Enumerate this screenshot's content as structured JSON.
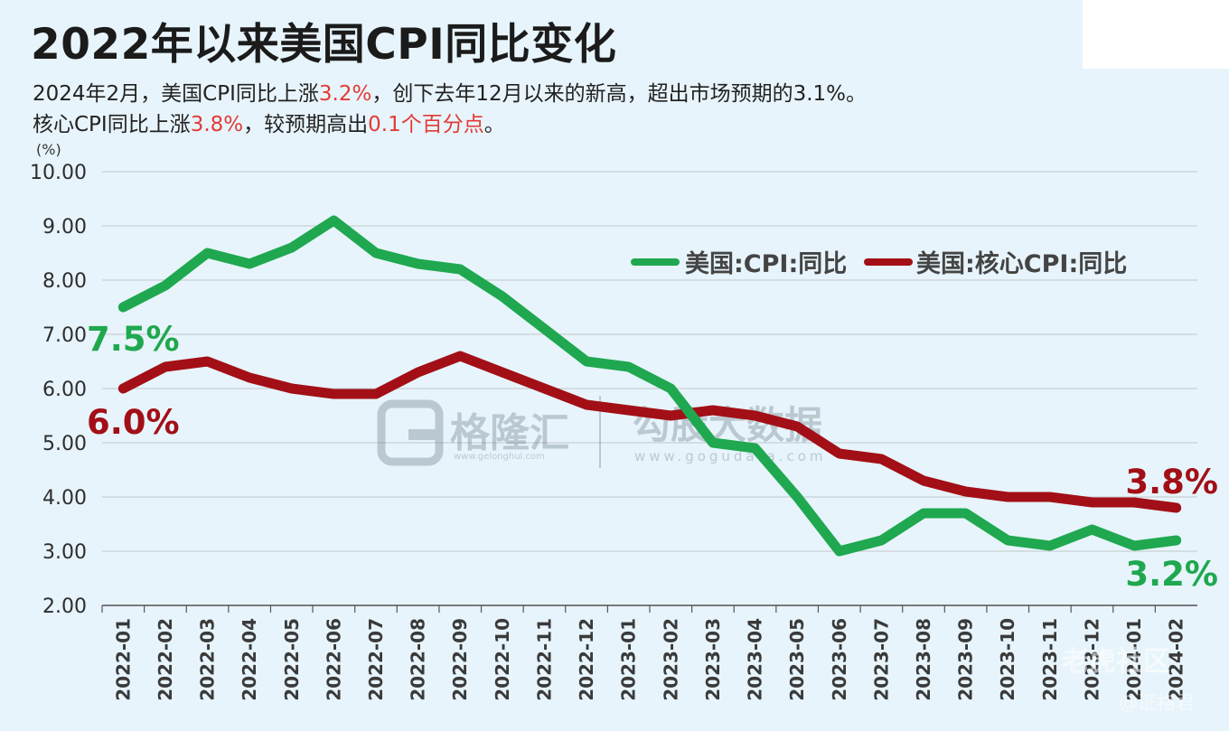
{
  "header": {
    "title": "2022年以来美国CPI同比变化",
    "subtitle_line1": [
      {
        "text": "2024年2月，美国CPI同比上涨",
        "highlight": false
      },
      {
        "text": "3.2%",
        "highlight": true
      },
      {
        "text": "，创下去年12月以来的新高，超出市场预期的3.1%。",
        "highlight": false
      }
    ],
    "subtitle_line2": [
      {
        "text": "核心CPI同比上涨",
        "highlight": false
      },
      {
        "text": "3.8%",
        "highlight": true
      },
      {
        "text": "，较预期高出",
        "highlight": false
      },
      {
        "text": "0.1个百分点",
        "highlight": true
      },
      {
        "text": "。",
        "highlight": false
      }
    ]
  },
  "watermarks": {
    "brand1": "格隆汇",
    "brand1_url": "www.gelonghui.com",
    "brand2": "勾股大数据",
    "brand2_url": "www.gogudata.com",
    "social": "老虎社区",
    "author": "@证格君"
  },
  "colors": {
    "cpi": "#1fa84f",
    "core": "#a30f16",
    "highlight": "#e23b36",
    "background": "#e7f4fb"
  },
  "chart_data": {
    "type": "line",
    "unit_label": "(%)",
    "ylim": [
      2.0,
      10.0
    ],
    "yticks": [
      "2.00",
      "3.00",
      "4.00",
      "5.00",
      "6.00",
      "7.00",
      "8.00",
      "9.00",
      "10.00"
    ],
    "grid": true,
    "legend_position": "top-right",
    "categories": [
      "2022-01",
      "2022-02",
      "2022-03",
      "2022-04",
      "2022-05",
      "2022-06",
      "2022-07",
      "2022-08",
      "2022-09",
      "2022-10",
      "2022-11",
      "2022-12",
      "2023-01",
      "2023-02",
      "2023-03",
      "2023-04",
      "2023-05",
      "2023-06",
      "2023-07",
      "2023-08",
      "2023-09",
      "2023-10",
      "2023-11",
      "2023-12",
      "2024-01",
      "2024-02"
    ],
    "series": [
      {
        "name": "美国:CPI:同比",
        "color": "#1fa84f",
        "values": [
          7.5,
          7.9,
          8.5,
          8.3,
          8.6,
          9.1,
          8.5,
          8.3,
          8.2,
          7.7,
          7.1,
          6.5,
          6.4,
          6.0,
          5.0,
          4.9,
          4.0,
          3.0,
          3.2,
          3.7,
          3.7,
          3.2,
          3.1,
          3.4,
          3.1,
          3.2
        ]
      },
      {
        "name": "美国:核心CPI:同比",
        "color": "#a30f16",
        "values": [
          6.0,
          6.4,
          6.5,
          6.2,
          6.0,
          5.9,
          5.9,
          6.3,
          6.6,
          6.3,
          6.0,
          5.7,
          5.6,
          5.5,
          5.6,
          5.5,
          5.3,
          4.8,
          4.7,
          4.3,
          4.1,
          4.0,
          4.0,
          3.9,
          3.9,
          3.8
        ]
      }
    ],
    "annotations": [
      {
        "text": "7.5%",
        "series": 0,
        "index": 0
      },
      {
        "text": "6.0%",
        "series": 1,
        "index": 0
      },
      {
        "text": "3.8%",
        "series": 1,
        "index": 25
      },
      {
        "text": "3.2%",
        "series": 0,
        "index": 25
      }
    ]
  }
}
